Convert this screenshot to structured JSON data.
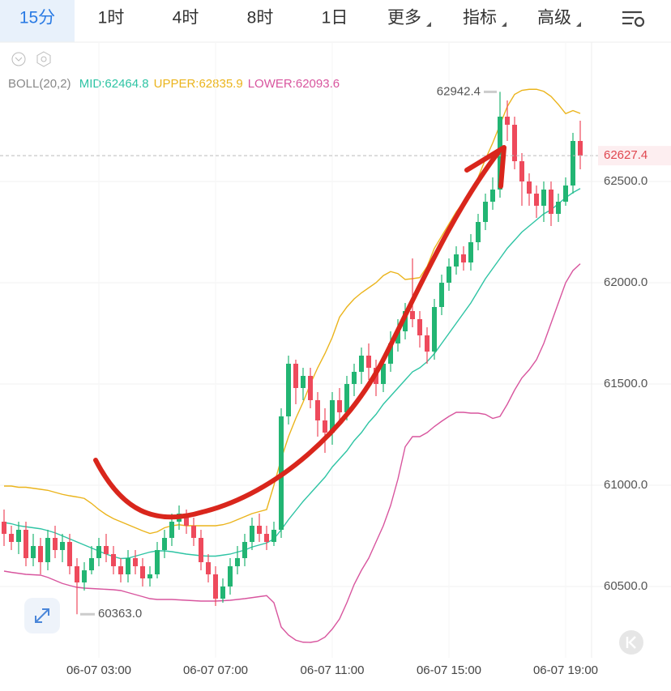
{
  "tabs": [
    "15分",
    "1时",
    "4时",
    "8时",
    "1日",
    "更多",
    "指标",
    "高级"
  ],
  "chart_data": {
    "type": "candlestick",
    "indicator": "BOLL(20,2)",
    "categories": [
      null,
      null,
      null,
      null,
      null,
      null,
      null,
      null,
      null,
      null,
      null,
      null,
      null,
      "06-07 03:00",
      null,
      null,
      null,
      null,
      null,
      null,
      null,
      null,
      null,
      null,
      null,
      null,
      null,
      null,
      null,
      "06-07 07:00",
      null,
      null,
      null,
      null,
      null,
      null,
      null,
      null,
      null,
      null,
      null,
      null,
      null,
      null,
      null,
      "06-07 11:00",
      null,
      null,
      null,
      null,
      null,
      null,
      null,
      null,
      null,
      null,
      null,
      null,
      null,
      null,
      null,
      "06-07 15:00",
      null,
      null,
      null,
      null,
      null,
      null,
      null,
      null,
      null,
      null,
      null,
      null,
      null,
      null,
      null,
      "06-07 19:00",
      null,
      null
    ],
    "opens": [
      60820,
      60760,
      60720,
      60780,
      60640,
      60700,
      60620,
      60740,
      60680,
      60720,
      60600,
      60520,
      60580,
      60640,
      60700,
      60660,
      60600,
      60560,
      60640,
      60600,
      60540,
      60560,
      60680,
      60740,
      60820,
      60860,
      60800,
      60740,
      60620,
      60560,
      60440,
      60500,
      60600,
      60640,
      60720,
      60800,
      60760,
      60720,
      60780,
      61340,
      61600,
      61480,
      61540,
      61420,
      61320,
      61260,
      61420,
      61360,
      61500,
      61560,
      61640,
      61580,
      61500,
      61600,
      61700,
      61760,
      61860,
      61820,
      61740,
      61660,
      61880,
      62000,
      62080,
      62140,
      62100,
      62200,
      62300,
      62400,
      62460,
      62820,
      62780,
      62600,
      62500,
      62440,
      62380,
      62460,
      62340,
      62400,
      62480,
      62700
    ],
    "highs": [
      60880,
      60800,
      60820,
      60820,
      60760,
      60740,
      60780,
      60800,
      60760,
      60760,
      60640,
      60620,
      60700,
      60740,
      60760,
      60700,
      60640,
      60680,
      60680,
      60640,
      60600,
      60720,
      60780,
      60860,
      60900,
      60880,
      60840,
      60780,
      60660,
      60600,
      60540,
      60640,
      60700,
      60760,
      60840,
      60860,
      60800,
      60820,
      61380,
      61640,
      61620,
      61580,
      61580,
      61460,
      61380,
      61460,
      61480,
      61540,
      61600,
      61680,
      61700,
      61620,
      61640,
      61760,
      61820,
      61900,
      62120,
      61860,
      61780,
      61920,
      62040,
      62120,
      62180,
      62180,
      62240,
      62340,
      62440,
      62520,
      62942.4,
      62900,
      62820,
      62640,
      62540,
      62480,
      62500,
      62500,
      62440,
      62520,
      62740,
      62800
    ],
    "lows": [
      60700,
      60680,
      60660,
      60600,
      60600,
      60560,
      60580,
      60640,
      60620,
      60560,
      60363,
      60480,
      60560,
      60600,
      60620,
      60560,
      60520,
      60520,
      60560,
      60500,
      60500,
      60540,
      60640,
      60700,
      60780,
      60760,
      60700,
      60580,
      60520,
      60404,
      60420,
      60460,
      60560,
      60600,
      60680,
      60720,
      60680,
      60700,
      60740,
      61300,
      61400,
      61420,
      61380,
      61240,
      61160,
      61200,
      61300,
      61320,
      61440,
      61500,
      61520,
      61440,
      61460,
      61560,
      61660,
      61720,
      61780,
      61680,
      61600,
      61620,
      61840,
      61960,
      62040,
      62060,
      62060,
      62160,
      62260,
      62360,
      62420,
      62700,
      62560,
      62380,
      62380,
      62320,
      62300,
      62280,
      62300,
      62380,
      62440,
      62560
    ],
    "closes": [
      60760,
      60720,
      60780,
      60640,
      60700,
      60620,
      60740,
      60680,
      60720,
      60600,
      60520,
      60580,
      60640,
      60700,
      60660,
      60600,
      60560,
      60640,
      60600,
      60540,
      60560,
      60680,
      60740,
      60820,
      60860,
      60800,
      60740,
      60620,
      60560,
      60440,
      60500,
      60600,
      60640,
      60720,
      60800,
      60760,
      60720,
      60780,
      61340,
      61600,
      61480,
      61540,
      61420,
      61320,
      61260,
      61420,
      61360,
      61500,
      61560,
      61640,
      61580,
      61500,
      61600,
      61700,
      61760,
      61860,
      61820,
      61740,
      61660,
      61880,
      62000,
      62080,
      62140,
      62100,
      62200,
      62300,
      62400,
      62460,
      62820,
      62780,
      62600,
      62500,
      62440,
      62380,
      62460,
      62340,
      62400,
      62480,
      62700,
      62627.4
    ],
    "up_color": "#22b573",
    "down_color": "#ee4a5c",
    "series": [
      {
        "name": "MID:62464.8",
        "color": "#2ec4a4",
        "values": [
          60816,
          60810,
          60800,
          60795,
          60790,
          60785,
          60776,
          60765,
          60750,
          60735,
          60720,
          60705,
          60690,
          60675,
          60660,
          60648,
          60638,
          60640,
          60650,
          60660,
          60670,
          60676,
          60676,
          60672,
          60666,
          60660,
          60656,
          60652,
          60650,
          60650,
          60655,
          60660,
          60670,
          60680,
          60695,
          60705,
          60715,
          60735,
          60780,
          60830,
          60875,
          60920,
          60960,
          61000,
          61040,
          61090,
          61130,
          61170,
          61220,
          61260,
          61310,
          61350,
          61400,
          61440,
          61480,
          61520,
          61560,
          61580,
          61610,
          61650,
          61700,
          61750,
          61800,
          61850,
          61900,
          61960,
          62020,
          62070,
          62120,
          62170,
          62210,
          62250,
          62280,
          62310,
          62340,
          62360,
          62390,
          62420,
          62445,
          62464.8
        ]
      },
      {
        "name": "UPPER:62835.9",
        "color": "#ebb41c",
        "values": [
          60996,
          60996,
          60990,
          60990,
          60985,
          60980,
          60975,
          60965,
          60955,
          60948,
          60942,
          60935,
          60910,
          60880,
          60855,
          60835,
          60820,
          60805,
          60790,
          60775,
          60762,
          60770,
          60790,
          60800,
          60805,
          60800,
          60800,
          60800,
          60800,
          60800,
          60805,
          60815,
          60830,
          60845,
          60860,
          60870,
          60880,
          61000,
          61130,
          61240,
          61330,
          61410,
          61500,
          61580,
          61650,
          61730,
          61830,
          61880,
          61920,
          61950,
          61975,
          62000,
          62035,
          62055,
          62045,
          62016,
          62020,
          62025,
          62080,
          62170,
          62230,
          62290,
          62350,
          62400,
          62440,
          62520,
          62610,
          62690,
          62780,
          62870,
          62930,
          62950,
          62955,
          62955,
          62945,
          62920,
          62880,
          62835,
          62850,
          62835.9
        ]
      },
      {
        "name": "LOWER:62093.6",
        "color": "#d8559e",
        "values": [
          60576,
          60570,
          60565,
          60560,
          60558,
          60556,
          60545,
          60530,
          60515,
          60505,
          60496,
          60492,
          60490,
          60488,
          60486,
          60484,
          60480,
          60470,
          60460,
          60450,
          60440,
          60436,
          60436,
          60436,
          60434,
          60432,
          60430,
          60428,
          60428,
          60428,
          60430,
          60432,
          60436,
          60440,
          60445,
          60450,
          60455,
          60420,
          60300,
          60260,
          60235,
          60225,
          60224,
          60230,
          60250,
          60290,
          60340,
          60420,
          60510,
          60580,
          60640,
          60720,
          60800,
          60900,
          61030,
          61190,
          61240,
          61240,
          61260,
          61290,
          61316,
          61340,
          61360,
          61360,
          61356,
          61356,
          61350,
          61330,
          61340,
          61400,
          61470,
          61530,
          61570,
          61620,
          61700,
          61800,
          61900,
          62000,
          62060,
          62093.6
        ]
      }
    ],
    "ylim": [
      60156,
      63156
    ],
    "yticks": [
      {
        "value": 60500,
        "label": "60500.0"
      },
      {
        "value": 61000,
        "label": "61000.0"
      },
      {
        "value": 61500,
        "label": "61500.0"
      },
      {
        "value": 62000,
        "label": "62000.0"
      },
      {
        "value": 62500,
        "label": "62500.0"
      }
    ],
    "annotations": [
      {
        "value": 62942.4,
        "label": "62942.4"
      },
      {
        "value": 60363,
        "label": "60363.0"
      }
    ],
    "grid": true
  }
}
